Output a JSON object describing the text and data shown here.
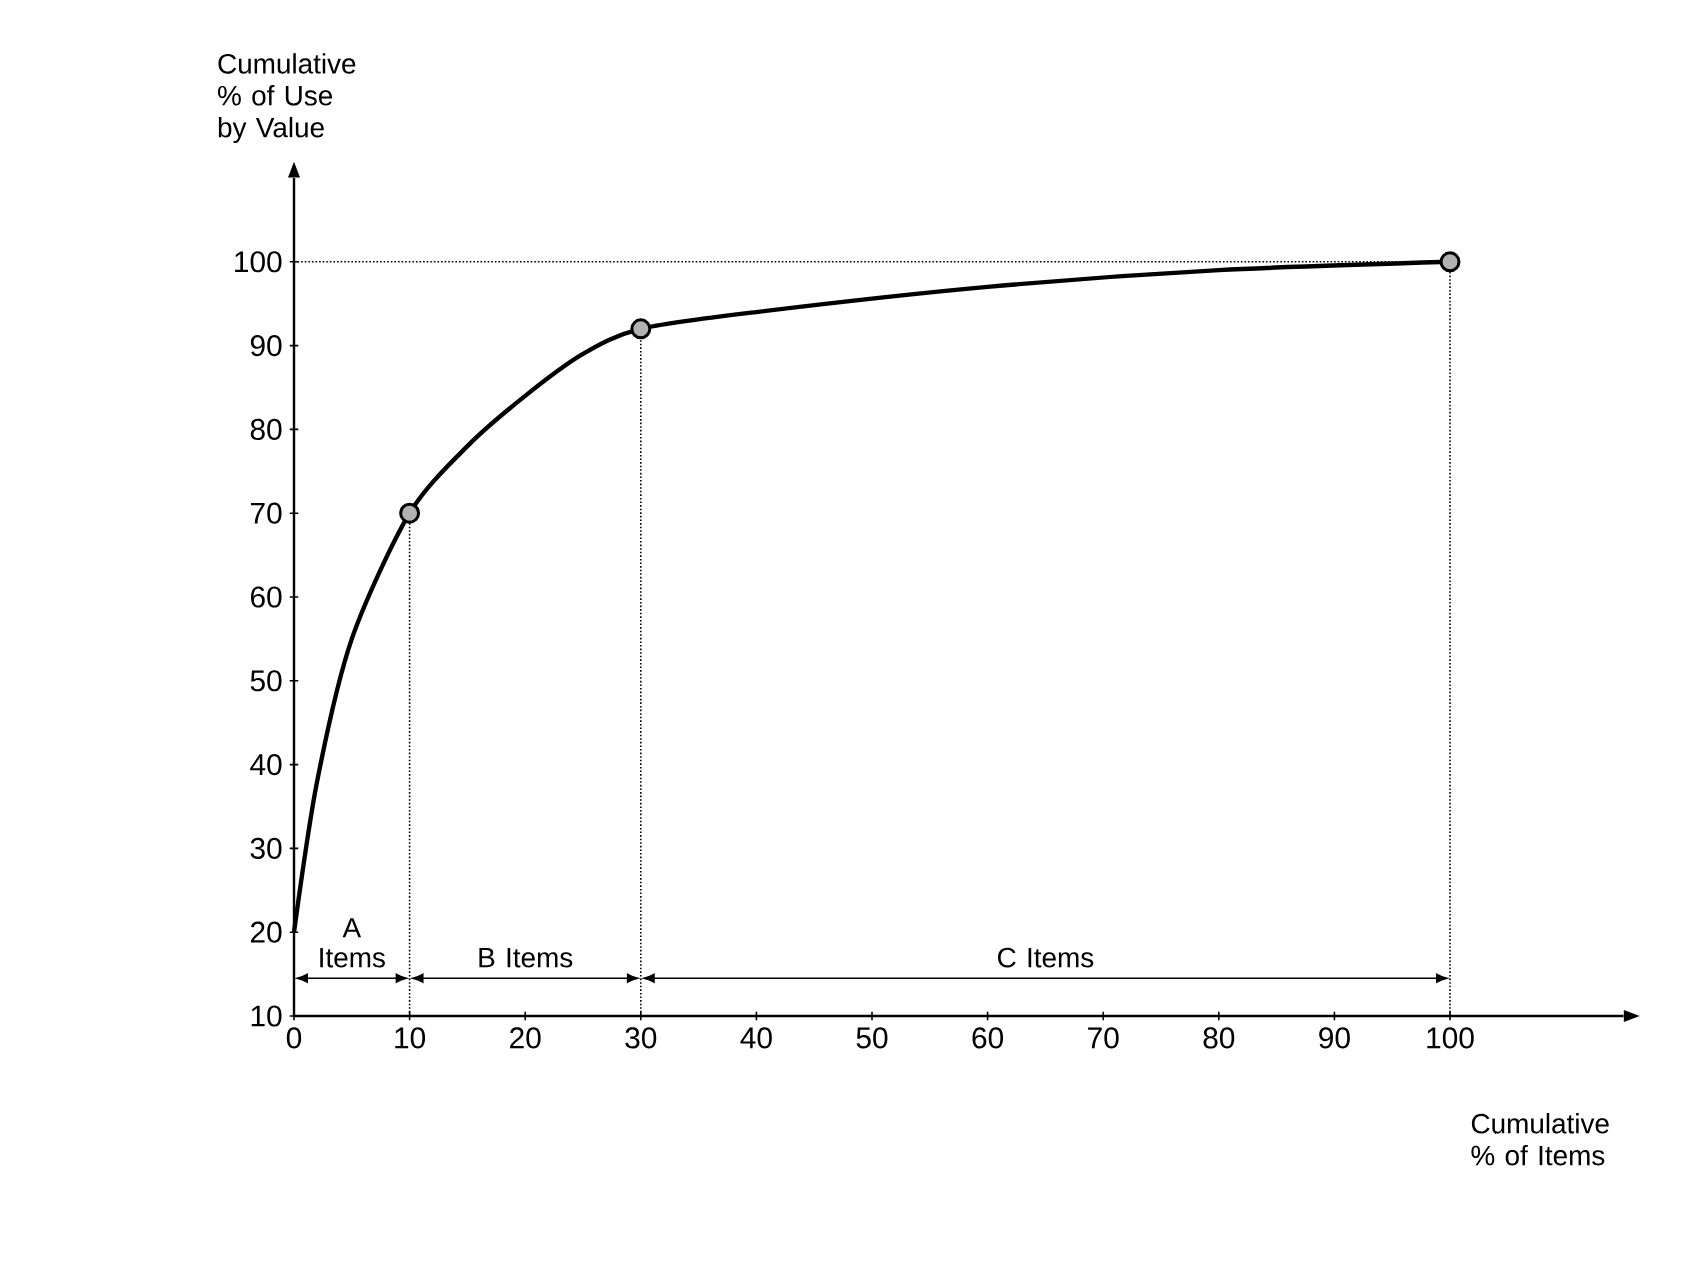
{
  "chart_data": {
    "type": "line",
    "xlabel": "Cumulative % of Items",
    "ylabel": "Cumulative % of Use by Value",
    "x": [
      0,
      2,
      5,
      10,
      15,
      20,
      25,
      30,
      40,
      60,
      80,
      100
    ],
    "series": [
      {
        "color": "#000000",
        "values": [
          20,
          38,
          55,
          70,
          78,
          84,
          89,
          92,
          94,
          97,
          99,
          100
        ]
      },
      {
        "type": "scatter",
        "color": "#000000",
        "x": [
          10,
          30,
          100
        ],
        "values": [
          70,
          92,
          100
        ]
      }
    ],
    "xlim": [
      0,
      115
    ],
    "ylim": [
      10,
      110
    ],
    "xticks": [
      0,
      10,
      20,
      30,
      40,
      50,
      60,
      70,
      80,
      90,
      100
    ],
    "yticks": [
      10,
      20,
      30,
      40,
      50,
      60,
      70,
      80,
      90,
      100
    ],
    "ref_lines": [
      {
        "axis": "x",
        "value": 10,
        "line_style": "dotted"
      },
      {
        "axis": "x",
        "value": 30,
        "line_style": "dotted"
      },
      {
        "axis": "x",
        "value": 100,
        "line_style": "dotted"
      },
      {
        "axis": "y",
        "value": 100,
        "line_style": "dotted"
      }
    ],
    "annotations": [
      "A Items",
      "B Items",
      "C Items"
    ],
    "line_style": "solid"
  }
}
